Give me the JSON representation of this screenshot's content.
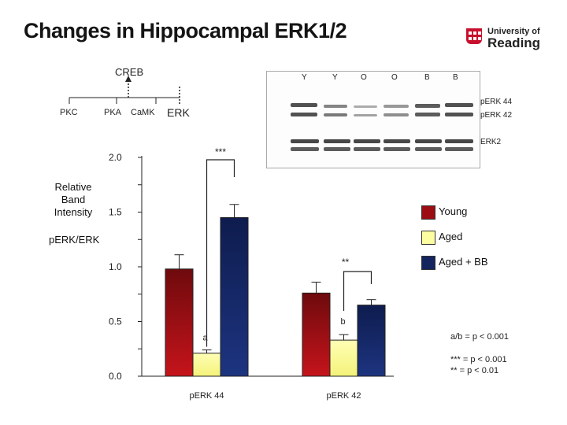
{
  "title": "Changes in Hippocampal ERK1/2",
  "logo": {
    "line1": "University of",
    "line2": "Reading"
  },
  "pathway": {
    "top": "CREB",
    "items": [
      "PKC",
      "PKA",
      "CaMK",
      "ERK"
    ]
  },
  "blot": {
    "lanes": [
      "Y",
      "Y",
      "O",
      "O",
      "B",
      "B"
    ],
    "bands": [
      "pERK 44",
      "pERK 42",
      "ERK2"
    ]
  },
  "colors": {
    "young": "#9b0d12",
    "aged": "#fcfca0",
    "aged_bb": "#13245e"
  },
  "chart_data": {
    "type": "bar",
    "title": "",
    "ylabel": "Relative Band Intensity",
    "ylabel_sub": "pERK/ERK",
    "ylim": [
      0,
      2.0
    ],
    "yticks": [
      "2.0",
      "1.5",
      "1.0",
      "0.5",
      "0.0"
    ],
    "categories": [
      "pERK 44",
      "pERK 42"
    ],
    "series": [
      {
        "name": "Young",
        "values": [
          0.98,
          0.76
        ],
        "errors": [
          0.13,
          0.1
        ]
      },
      {
        "name": "Aged",
        "values": [
          0.21,
          0.33
        ],
        "errors": [
          0.03,
          0.05
        ]
      },
      {
        "name": "Aged + BB",
        "values": [
          1.45,
          0.65
        ],
        "errors": [
          0.12,
          0.05
        ]
      }
    ],
    "annotations": {
      "sig1": "***",
      "sig2": "**",
      "letter_a": "a",
      "letter_b": "b",
      "note1": "a/b = p < 0.001",
      "note2": "*** = p < 0.001",
      "note3": "** = p < 0.01"
    }
  }
}
